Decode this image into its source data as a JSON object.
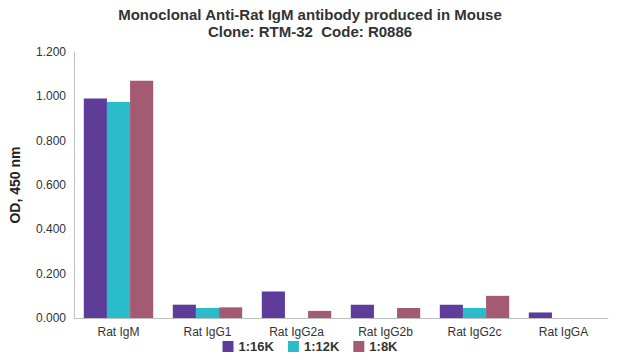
{
  "chart_data": {
    "type": "bar",
    "title": "Monoclonal Anti-Rat IgM antibody produced in Mouse",
    "subtitle": "Clone: RTM-32  Code: R0886",
    "y_label": "OD, 450 nm",
    "categories": [
      "Rat IgM",
      "Rat IgG1",
      "Rat IgG2a",
      "Rat IgG2b",
      "Rat IgG2c",
      "Rat IgGA"
    ],
    "series": [
      {
        "name": "1:16K",
        "color": "#5e3c99",
        "values": [
          0.99,
          0.06,
          0.12,
          0.06,
          0.06,
          0.025
        ]
      },
      {
        "name": "1:12K",
        "color": "#2bbccc",
        "values": [
          0.975,
          0.045,
          0,
          0,
          0.045,
          0
        ]
      },
      {
        "name": "1:8K",
        "color": "#a35a72",
        "values": [
          1.07,
          0.048,
          0.032,
          0.045,
          0.1,
          0
        ]
      }
    ],
    "ylim": [
      0,
      1.2
    ],
    "yticks": [
      {
        "value": 0,
        "label": "0.000"
      },
      {
        "value": 0.2,
        "label": "0.200"
      },
      {
        "value": 0.4,
        "label": "0.400"
      },
      {
        "value": 0.6,
        "label": "0.600"
      },
      {
        "value": 0.8,
        "label": "0.800"
      },
      {
        "value": 1.0,
        "label": "1.000"
      },
      {
        "value": 1.2,
        "label": "1.200"
      }
    ],
    "grid": false,
    "legend": "bottom"
  }
}
